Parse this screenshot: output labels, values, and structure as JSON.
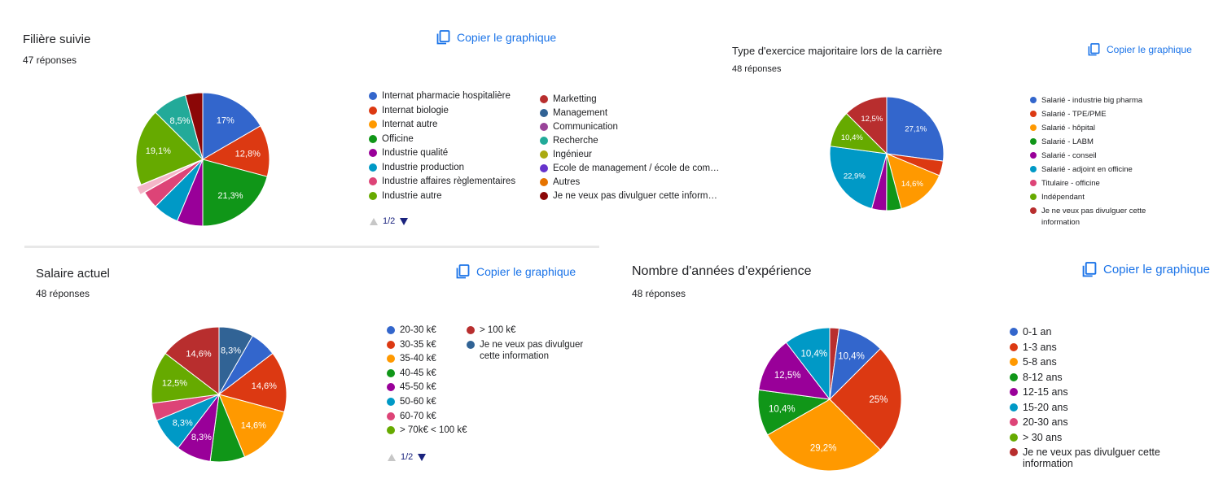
{
  "copy_label": "Copier le graphique",
  "charts": [
    {
      "id": "filiere",
      "title": "Filière suivie",
      "responses": "47 réponses",
      "legend_col1": [
        {
          "label": "Internat pharmacie hospitalière",
          "color": "#3366cc"
        },
        {
          "label": "Internat biologie",
          "color": "#dc3912"
        },
        {
          "label": "Internat autre",
          "color": "#ff9900"
        },
        {
          "label": "Officine",
          "color": "#109618"
        },
        {
          "label": "Industrie qualité",
          "color": "#990099"
        },
        {
          "label": "Industrie production",
          "color": "#0099c6"
        },
        {
          "label": "Industrie affaires règlementaires",
          "color": "#dd4477"
        },
        {
          "label": "Industrie autre",
          "color": "#66aa00"
        }
      ],
      "legend_col2": [
        {
          "label": "Marketting",
          "color": "#b82e2e"
        },
        {
          "label": "Management",
          "color": "#316395"
        },
        {
          "label": "Communication",
          "color": "#994499"
        },
        {
          "label": "Recherche",
          "color": "#22aa99"
        },
        {
          "label": "Ingénieur",
          "color": "#aaaa11"
        },
        {
          "label": "Ecole de management / école de com…",
          "color": "#6633cc"
        },
        {
          "label": "Autres",
          "color": "#e67300"
        },
        {
          "label": "Je ne veux pas divulguer cette inform…",
          "color": "#8b0707"
        }
      ],
      "pager": "1/2"
    },
    {
      "id": "exercice",
      "title": "Type d'exercice majoritaire lors de la carrière",
      "responses": "48 réponses",
      "legend_col1": [
        {
          "label": "Salarié - industrie big pharma",
          "color": "#3366cc"
        },
        {
          "label": "Salarié - TPE/PME",
          "color": "#dc3912"
        },
        {
          "label": "Salarié - hôpital",
          "color": "#ff9900"
        },
        {
          "label": "Salarié - LABM",
          "color": "#109618"
        },
        {
          "label": "Salarié - conseil",
          "color": "#990099"
        },
        {
          "label": "Salarié - adjoint en officine",
          "color": "#0099c6"
        },
        {
          "label": "Titulaire - officine",
          "color": "#dd4477"
        },
        {
          "label": "Indépendant",
          "color": "#66aa00"
        },
        {
          "label": "Je ne veux pas divulguer cette information",
          "color": "#b82e2e"
        }
      ]
    },
    {
      "id": "salaire",
      "title": "Salaire actuel",
      "responses": "48 réponses",
      "legend_col1": [
        {
          "label": "20-30 k€",
          "color": "#3366cc"
        },
        {
          "label": "30-35 k€",
          "color": "#dc3912"
        },
        {
          "label": "35-40 k€",
          "color": "#ff9900"
        },
        {
          "label": "40-45 k€",
          "color": "#109618"
        },
        {
          "label": "45-50 k€",
          "color": "#990099"
        },
        {
          "label": "50-60 k€",
          "color": "#0099c6"
        },
        {
          "label": "60-70 k€",
          "color": "#dd4477"
        },
        {
          "label": "> 70k€ < 100 k€",
          "color": "#66aa00"
        }
      ],
      "legend_col2": [
        {
          "label": "> 100 k€",
          "color": "#b82e2e"
        },
        {
          "label": "Je ne veux pas divulguer cette information",
          "color": "#316395"
        }
      ],
      "pager": "1/2"
    },
    {
      "id": "experience",
      "title": "Nombre d'années d'expérience",
      "responses": "48 réponses",
      "legend_col1": [
        {
          "label": "0-1 an",
          "color": "#3366cc"
        },
        {
          "label": "1-3 ans",
          "color": "#dc3912"
        },
        {
          "label": "5-8 ans",
          "color": "#ff9900"
        },
        {
          "label": "8-12 ans",
          "color": "#109618"
        },
        {
          "label": "12-15 ans",
          "color": "#990099"
        },
        {
          "label": "15-20 ans",
          "color": "#0099c6"
        },
        {
          "label": "20-30 ans",
          "color": "#dd4477"
        },
        {
          "label": "> 30 ans",
          "color": "#66aa00"
        },
        {
          "label": "Je ne veux pas divulguer cette information",
          "color": "#b82e2e"
        }
      ]
    }
  ],
  "chart_data": [
    {
      "type": "pie",
      "title": "Filière suivie",
      "slices": [
        {
          "label": "Internat pharmacie hospitalière",
          "value": 17.0,
          "display": "17%",
          "color": "#3366cc"
        },
        {
          "label": "Internat biologie",
          "value": 12.8,
          "display": "12,8%",
          "color": "#dc3912"
        },
        {
          "label": "Internat autre",
          "value": 0,
          "display": "",
          "color": "#ff9900"
        },
        {
          "label": "Officine",
          "value": 21.3,
          "display": "21,3%",
          "color": "#109618"
        },
        {
          "label": "Industrie qualité",
          "value": 6.4,
          "display": "",
          "color": "#990099"
        },
        {
          "label": "Industrie production",
          "value": 6.4,
          "display": "",
          "color": "#0099c6"
        },
        {
          "label": "Industrie affaires règlementaires",
          "value": 4.3,
          "display": "",
          "color": "#dd4477"
        },
        {
          "label": "Autres",
          "value": 2.1,
          "display": "",
          "color": "#f4b6c8"
        },
        {
          "label": "Industrie autre",
          "value": 19.1,
          "display": "19,1%",
          "color": "#66aa00"
        },
        {
          "label": "Recherche",
          "value": 8.5,
          "display": "8,5%",
          "color": "#22aa99"
        },
        {
          "label": "Je ne veux pas divulguer cette information",
          "value": 4.3,
          "display": "",
          "color": "#8b0707"
        }
      ]
    },
    {
      "type": "pie",
      "title": "Type d'exercice majoritaire lors de la carrière",
      "slices": [
        {
          "label": "Salarié - industrie big pharma",
          "value": 27.1,
          "display": "27,1%",
          "color": "#3366cc"
        },
        {
          "label": "Salarié - TPE/PME",
          "value": 4.2,
          "display": "",
          "color": "#dc3912"
        },
        {
          "label": "Salarié - hôpital",
          "value": 14.6,
          "display": "14,6%",
          "color": "#ff9900"
        },
        {
          "label": "Salarié - LABM",
          "value": 4.2,
          "display": "",
          "color": "#109618"
        },
        {
          "label": "Salarié - conseil",
          "value": 4.2,
          "display": "",
          "color": "#990099"
        },
        {
          "label": "Salarié - adjoint en officine",
          "value": 22.9,
          "display": "22,9%",
          "color": "#0099c6"
        },
        {
          "label": "Indépendant",
          "value": 10.4,
          "display": "10,4%",
          "color": "#66aa00"
        },
        {
          "label": "Je ne veux pas divulguer cette information",
          "value": 12.5,
          "display": "12,5%",
          "color": "#b82e2e"
        }
      ]
    },
    {
      "type": "pie",
      "title": "Salaire actuel",
      "slices": [
        {
          "label": "Je ne veux pas divulguer cette information",
          "value": 8.3,
          "display": "8,3%",
          "color": "#316395"
        },
        {
          "label": "20-30 k€",
          "value": 6.3,
          "display": "",
          "color": "#3366cc"
        },
        {
          "label": "30-35 k€",
          "value": 14.6,
          "display": "14,6%",
          "color": "#dc3912"
        },
        {
          "label": "35-40 k€",
          "value": 14.6,
          "display": "14,6%",
          "color": "#ff9900"
        },
        {
          "label": "40-45 k€",
          "value": 8.3,
          "display": "",
          "color": "#109618"
        },
        {
          "label": "45-50 k€",
          "value": 8.3,
          "display": "8,3%",
          "color": "#990099"
        },
        {
          "label": "50-60 k€",
          "value": 8.3,
          "display": "8,3%",
          "color": "#0099c6"
        },
        {
          "label": "60-70 k€",
          "value": 4.2,
          "display": "",
          "color": "#dd4477"
        },
        {
          "label": "> 70k€ < 100 k€",
          "value": 12.5,
          "display": "12,5%",
          "color": "#66aa00"
        },
        {
          "label": "> 100 k€",
          "value": 14.6,
          "display": "14,6%",
          "color": "#b82e2e"
        }
      ]
    },
    {
      "type": "pie",
      "title": "Nombre d'années d'expérience",
      "slices": [
        {
          "label": "Je ne veux pas divulguer cette information",
          "value": 2.1,
          "display": "",
          "color": "#b82e2e"
        },
        {
          "label": "0-1 an",
          "value": 10.4,
          "display": "10,4%",
          "color": "#3366cc"
        },
        {
          "label": "1-3 ans",
          "value": 25.0,
          "display": "25%",
          "color": "#dc3912"
        },
        {
          "label": "5-8 ans",
          "value": 29.2,
          "display": "29,2%",
          "color": "#ff9900"
        },
        {
          "label": "8-12 ans",
          "value": 10.4,
          "display": "10,4%",
          "color": "#109618"
        },
        {
          "label": "12-15 ans",
          "value": 12.5,
          "display": "12,5%",
          "color": "#990099"
        },
        {
          "label": "15-20 ans",
          "value": 10.4,
          "display": "10,4%",
          "color": "#0099c6"
        }
      ]
    }
  ]
}
